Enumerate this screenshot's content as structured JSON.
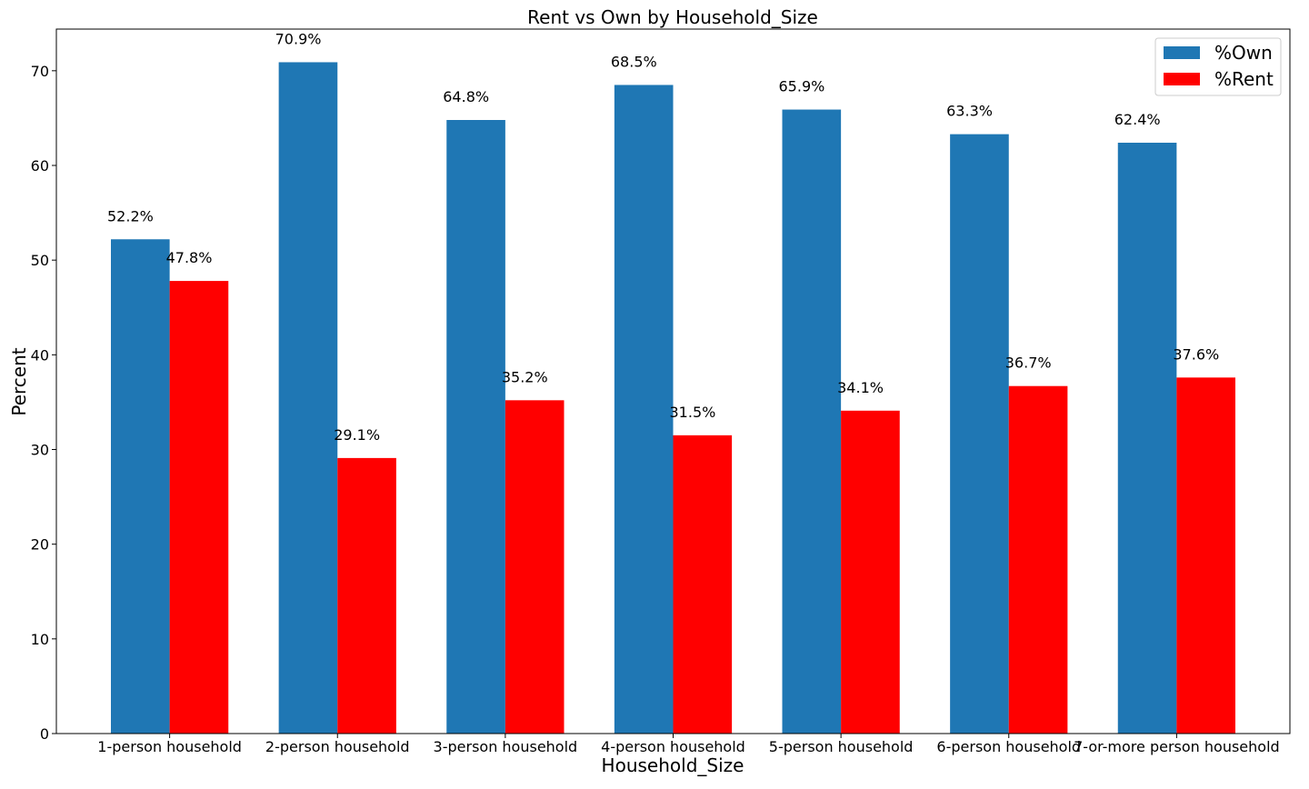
{
  "chart_data": {
    "type": "bar",
    "title": "Rent vs Own by Household_Size",
    "xlabel": "Household_Size",
    "ylabel": "Percent",
    "categories": [
      "1-person household",
      "2-person household",
      "3-person household",
      "4-person household",
      "5-person household",
      "6-person household",
      "7-or-more person household"
    ],
    "series": [
      {
        "name": "%Own",
        "color": "#1f77b4",
        "values": [
          52.2,
          70.9,
          64.8,
          68.5,
          65.9,
          63.3,
          62.4
        ],
        "labels": [
          "52.2%",
          "70.9%",
          "64.8%",
          "68.5%",
          "65.9%",
          "63.3%",
          "62.4%"
        ]
      },
      {
        "name": "%Rent",
        "color": "#ff0000",
        "values": [
          47.8,
          29.1,
          35.2,
          31.5,
          34.1,
          36.7,
          37.6
        ],
        "labels": [
          "47.8%",
          "29.1%",
          "35.2%",
          "31.5%",
          "34.1%",
          "36.7%",
          "37.6%"
        ]
      }
    ],
    "ylim": [
      0,
      74.4
    ],
    "yticks": [
      0,
      10,
      20,
      30,
      40,
      50,
      60,
      70
    ],
    "grid": false,
    "legend_position": "top-right"
  }
}
